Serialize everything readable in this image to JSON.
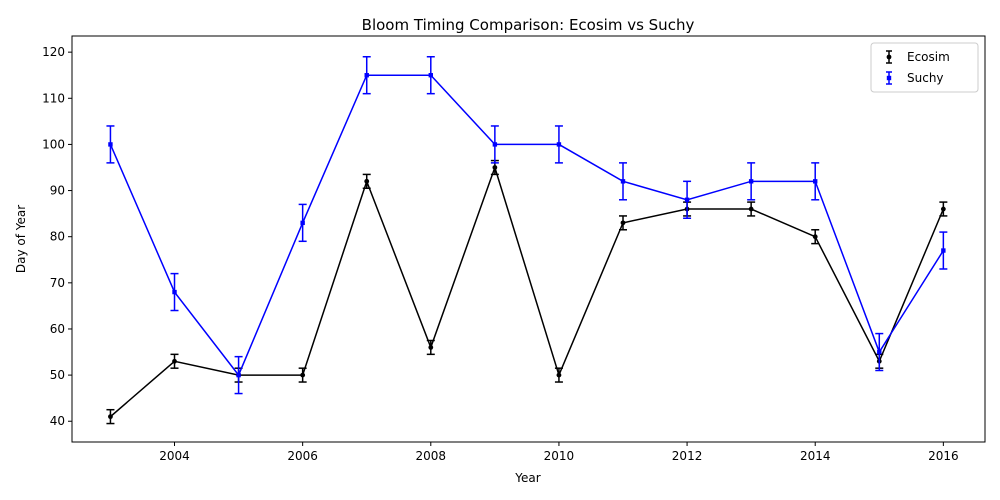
{
  "chart_data": {
    "type": "line",
    "title": "Bloom Timing Comparison: Ecosim vs Suchy",
    "xlabel": "Year",
    "ylabel": "Day of Year",
    "xlim": [
      2002.4,
      2016.65
    ],
    "ylim": [
      35.5,
      123.5
    ],
    "xticks": [
      2004,
      2006,
      2008,
      2010,
      2012,
      2014,
      2016
    ],
    "yticks": [
      40,
      50,
      60,
      70,
      80,
      90,
      100,
      110,
      120
    ],
    "grid": false,
    "legend_position": "top-right",
    "series": [
      {
        "name": "Ecosim",
        "color": "#000000",
        "marker": "circle",
        "x": [
          2003,
          2004,
          2005,
          2006,
          2007,
          2008,
          2009,
          2010,
          2011,
          2012,
          2013,
          2014,
          2015,
          2016
        ],
        "y": [
          41,
          53,
          50,
          50,
          92,
          56,
          95,
          50,
          83,
          86,
          86,
          80,
          53,
          86
        ],
        "err": [
          1.5,
          1.5,
          1.5,
          1.5,
          1.5,
          1.5,
          1.5,
          1.5,
          1.5,
          1.5,
          1.5,
          1.5,
          1.5,
          1.5
        ]
      },
      {
        "name": "Suchy",
        "color": "#0000ff",
        "marker": "square",
        "x": [
          2003,
          2004,
          2005,
          2006,
          2007,
          2008,
          2009,
          2010,
          2011,
          2012,
          2013,
          2014,
          2015,
          2016
        ],
        "y": [
          100,
          68,
          50,
          83,
          115,
          115,
          100,
          100,
          92,
          88,
          92,
          92,
          55,
          77
        ],
        "err": [
          4,
          4,
          4,
          4,
          4,
          4,
          4,
          4,
          4,
          4,
          4,
          4,
          4,
          4
        ]
      }
    ]
  }
}
